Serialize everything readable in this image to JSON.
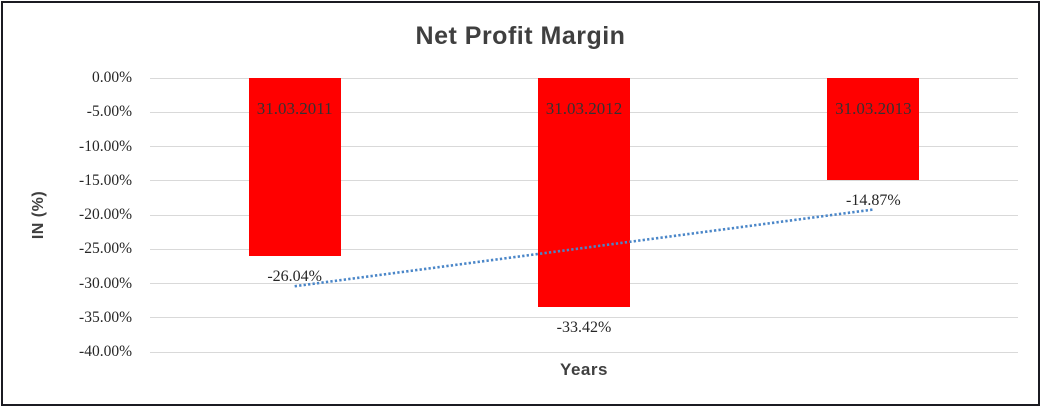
{
  "chart_data": {
    "type": "bar",
    "title": "Net Profit Margin",
    "xlabel": "Years",
    "ylabel": "IN (%)",
    "categories": [
      "31.03.2011",
      "31.03.2012",
      "31.03.2013"
    ],
    "values": [
      -26.04,
      -33.42,
      -14.87
    ],
    "data_labels": [
      "-26.04%",
      "-33.42%",
      "-14.87%"
    ],
    "ylim": [
      0,
      -40
    ],
    "ytick_step": -5,
    "ytick_labels": [
      "0.00%",
      "-5.00%",
      "-10.00%",
      "-15.00%",
      "-20.00%",
      "-25.00%",
      "-30.00%",
      "-35.00%",
      "-40.00%"
    ],
    "grid": true,
    "legend": "none",
    "colors": {
      "bar": "#ff0000",
      "bar_label": "#333333",
      "gridline": "#d9d9d9",
      "tick_text": "#262626",
      "title_text": "#3f3f3f",
      "trendline": "#4a86c8"
    },
    "trendline": {
      "type": "linear",
      "style": "dotted",
      "endpoint_values": [
        -30.4,
        -19.2
      ]
    }
  }
}
